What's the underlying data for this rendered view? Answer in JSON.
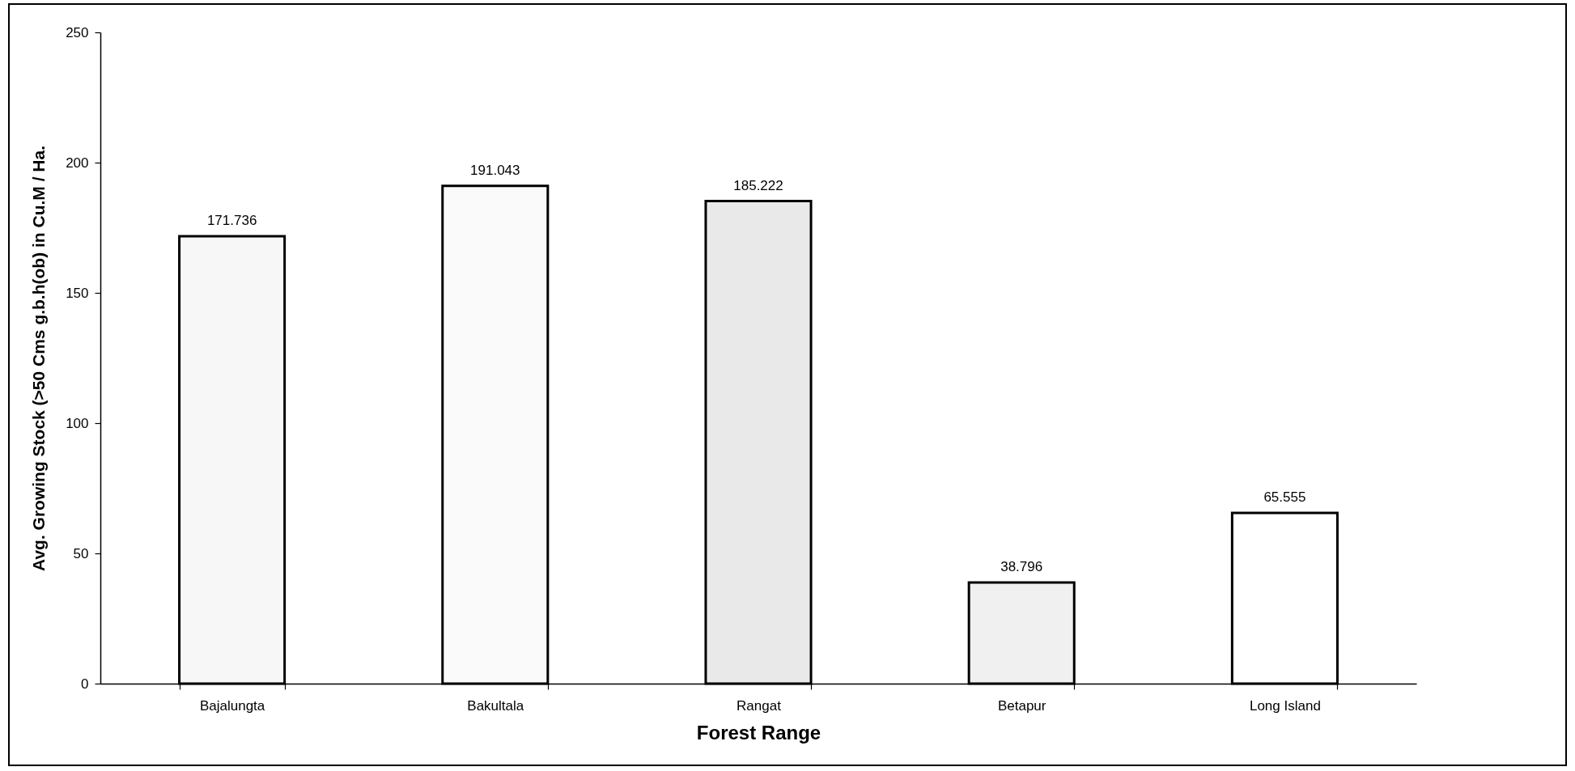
{
  "chart_data": {
    "type": "bar",
    "xlabel": "Forest Range",
    "ylabel": "Avg. Growing Stock (>50 Cms g.b.h(ob) in Cu.M / Ha.",
    "categories": [
      "Bajalungta",
      "Bakultala",
      "Rangat",
      "Betapur",
      "Long Island"
    ],
    "values": [
      171.736,
      191.043,
      185.222,
      38.796,
      65.555
    ],
    "colors": [
      "#f7f7f7",
      "#fafafa",
      "#e9e9e9",
      "#f0f0f0",
      "#ffffff"
    ],
    "ylim": [
      0,
      250
    ],
    "yticks": [
      0,
      50,
      100,
      150,
      200,
      250
    ],
    "data_labels": true
  }
}
